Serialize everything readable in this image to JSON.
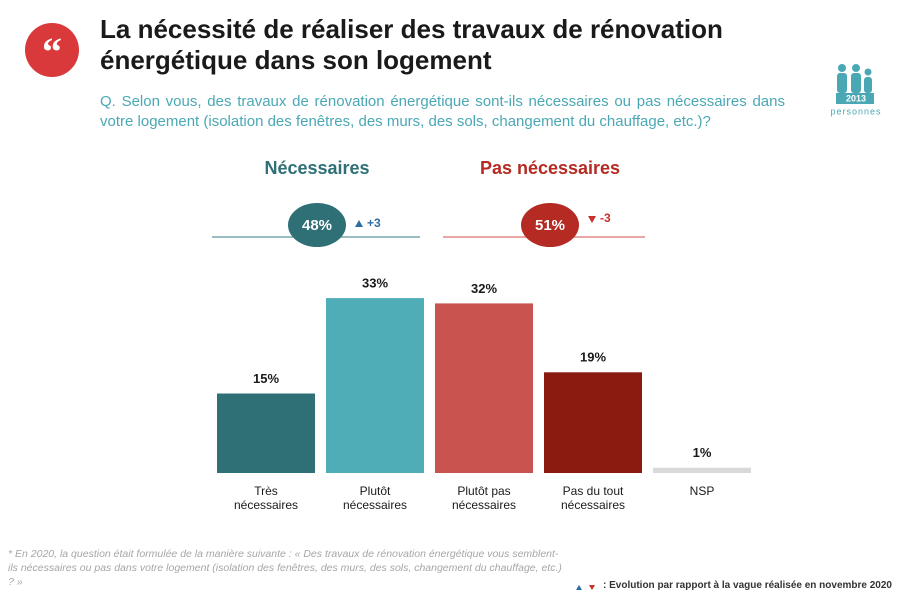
{
  "header": {
    "title": "La nécessité de réaliser des travaux de rénovation énergétique dans son logement",
    "question": "Q. Selon vous, des travaux de rénovation énergétique sont-ils nécessaires ou pas nécessaires dans votre logement (isolation des fenêtres, des murs, des sols, changement du chauffage, etc.)?",
    "sample": "2013",
    "sample_label": "personnes"
  },
  "summary": [
    {
      "label": "Nécessaires",
      "value": 48,
      "value_label": "48%",
      "change": "+3"
    },
    {
      "label": "Pas nécessaires",
      "value": 51,
      "value_label": "51%",
      "change": "-3"
    }
  ],
  "chart_data": {
    "type": "bar",
    "categories": [
      "Très nécessaires",
      "Plutôt nécessaires",
      "Plutôt pas nécessaires",
      "Pas du tout nécessaires",
      "NSP"
    ],
    "values": [
      15,
      33,
      32,
      19,
      1
    ],
    "value_labels": [
      "15%",
      "33%",
      "32%",
      "19%",
      "1%"
    ],
    "colors": [
      "#2f7077",
      "#4fadb8",
      "#c9534f",
      "#8b1a10",
      "#d9d9d9"
    ]
  },
  "footnote": "* En 2020, la question était formulée de la manière suivante : « Des travaux de rénovation énergétique vous semblent-ils nécessaires ou pas dans votre logement (isolation des fenêtres, des murs, des sols, changement du chauffage, etc.) ? »",
  "legend_note": ": Evolution par rapport à la vague réalisée en novembre 2020"
}
